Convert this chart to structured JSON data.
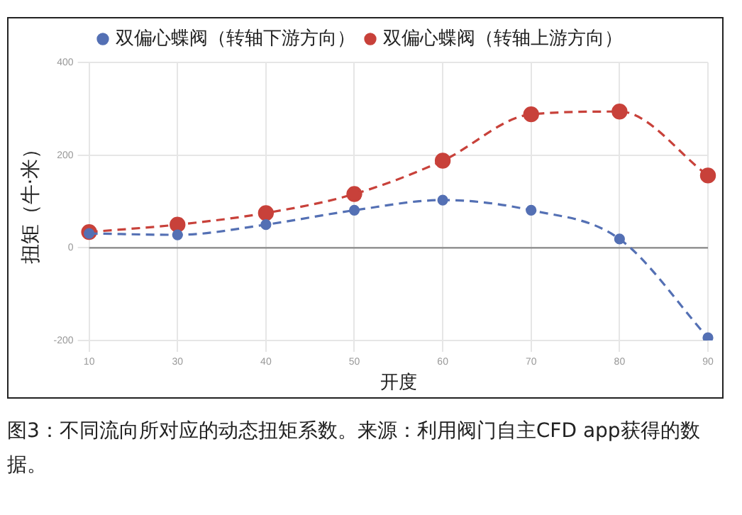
{
  "chart_data": {
    "type": "line",
    "xlabel": "开度",
    "ylabel": "扭矩（牛·米）",
    "categories": [
      "10",
      "30",
      "40",
      "50",
      "60",
      "70",
      "80",
      "90"
    ],
    "series": [
      {
        "name": "双偏心蝶阀（转轴下游方向）",
        "color": "#5470b4",
        "values": [
          31,
          28,
          50,
          81,
          103,
          81,
          19,
          -194
        ]
      },
      {
        "name": "双偏心蝶阀（转轴上游方向）",
        "color": "#c8413a",
        "values": [
          34,
          50,
          75,
          116,
          188,
          288,
          294,
          156
        ]
      }
    ],
    "ylim": [
      -200,
      400
    ],
    "yticks": [
      -200,
      0,
      200,
      400
    ],
    "ref_lines": [
      {
        "axis": "y",
        "value": 0,
        "color": "#888888"
      }
    ],
    "grid": true,
    "legend": "top",
    "marker": "circle",
    "line_style": "dashed",
    "annotations": [
      "图3：不同流向所对应的动态扭矩系数。来源：利用阀门自主CFD app获得的数据。"
    ]
  }
}
